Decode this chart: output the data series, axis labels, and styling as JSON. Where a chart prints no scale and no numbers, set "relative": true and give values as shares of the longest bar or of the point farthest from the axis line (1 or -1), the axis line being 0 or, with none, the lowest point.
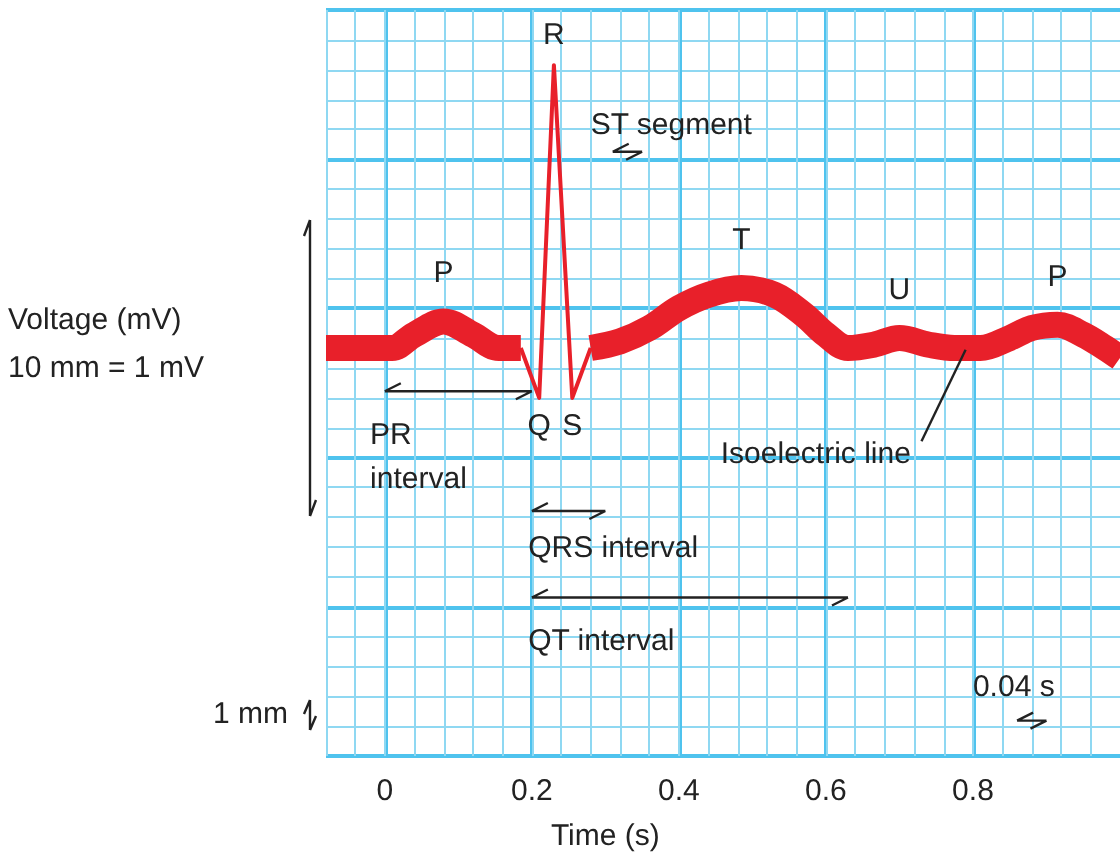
{
  "chart_data": {
    "type": "line",
    "xlabel": "Time (s)",
    "ylabel": "Voltage (mV)",
    "relative": true,
    "grid": true,
    "marker": "none",
    "xlim": [
      -0.08,
      1.0
    ],
    "xticks": [
      0,
      0.2,
      0.4,
      0.6,
      0.8
    ],
    "series": [
      {
        "color": "#e8202a",
        "x": [
          -0.08,
          0.0,
          0.01,
          0.04,
          0.08,
          0.12,
          0.155,
          0.185,
          0.23,
          0.28,
          0.32,
          0.36,
          0.4,
          0.44,
          0.485,
          0.53,
          0.57,
          0.6,
          0.63,
          0.665,
          0.7,
          0.74,
          0.775,
          0.81,
          0.85,
          0.88,
          0.915,
          0.95,
          0.98,
          1.0
        ],
        "values": [
          0.15,
          0.15,
          0.15,
          0.19,
          0.23,
          0.19,
          0.15,
          0.15,
          null,
          0.15,
          0.17,
          0.21,
          0.27,
          0.31,
          0.33,
          0.31,
          0.25,
          0.19,
          0.15,
          0.16,
          0.18,
          0.16,
          0.15,
          0.15,
          0.18,
          0.21,
          0.22,
          0.19,
          0.15,
          0.12
        ]
      },
      {
        "color": "#e8202a",
        "x": [
          0.185,
          0.21,
          0.23,
          0.255,
          0.28
        ],
        "values": [
          0.15,
          0,
          1,
          0,
          0.15
        ]
      }
    ],
    "annotations": [
      {
        "text": "P",
        "x": 0.08,
        "y": 0.23
      },
      {
        "text": "R",
        "x": 0.23,
        "y": 1
      },
      {
        "text": "Q",
        "x": 0.21,
        "y": 0
      },
      {
        "text": "S",
        "x": 0.255,
        "y": 0
      },
      {
        "text": "T",
        "x": 0.485,
        "y": 0.33
      },
      {
        "text": "U",
        "x": 0.7,
        "y": 0.18
      },
      {
        "text": "P",
        "x": 0.915,
        "y": 0.22
      },
      "ST segment",
      "PR\ninterval",
      "QRS interval",
      "QT interval",
      "Isoelectric line",
      "0.04 s",
      "10 mm = 1 mV",
      "1 mm"
    ]
  }
}
